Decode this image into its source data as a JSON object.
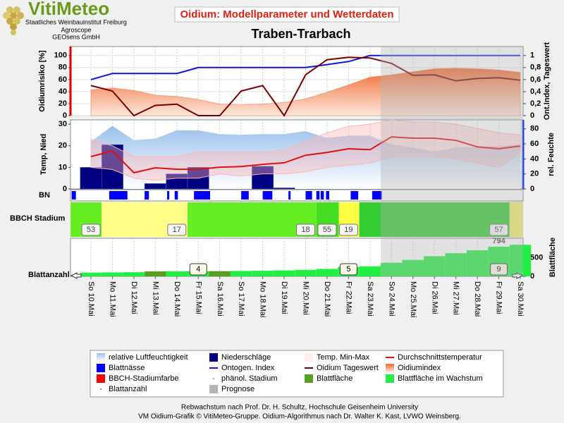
{
  "header": {
    "logo": "VitiMeteo",
    "org1": "Staatliches Weinbauinstitut Freiburg",
    "org2": "Agroscope",
    "org3": "GEOsens GmbH",
    "title": "Oidium: Modellparameter und Wetterdaten",
    "subtitle": "Traben-Trarbach"
  },
  "prognose": {
    "name": "Prognose",
    "from": "So 24.Mai",
    "color": "#b4b4b4"
  },
  "chart_data": [
    {
      "type": "risk",
      "ylabel": "Oidiumrisiko [%]",
      "y2label": "Ont.Index, Tageswert",
      "categories": [
        "So 10.Mai",
        "Mo 11.Mai",
        "Di 12.Mai",
        "Mi 13.Mai",
        "Do 14.Mai",
        "Fr 15.Mai",
        "Sa 16.Mai",
        "So 17.Mai",
        "Mo 18.Mai",
        "Di 19.Mai",
        "Mi 20.Mai",
        "Do 21.Mai",
        "Fr 22.Mai",
        "Sa 23.Mai",
        "So 24.Mai",
        "Mo 25.Mai",
        "Di 26.Mai",
        "Mi 27.Mai",
        "Do 28.Mai",
        "Fr 29.Mai",
        "Sa 30.Mai"
      ],
      "ylim": [
        0,
        115
      ],
      "yticks": [
        0,
        20,
        40,
        60,
        80,
        100
      ],
      "y2lim": [
        0,
        1.15
      ],
      "y2ticks": [
        0,
        {
          "value": 0.2,
          "label": "0,2"
        },
        {
          "value": 0.4,
          "label": "0,4"
        },
        {
          "value": 0.6,
          "label": "0,6"
        },
        {
          "value": 0.8,
          "label": "0,8"
        },
        1
      ],
      "grid": true,
      "series": [
        {
          "name": "Oidiumindex",
          "kind": "area",
          "color": "#f07030",
          "values": [
            43,
            46,
            42,
            34,
            32,
            27,
            19,
            18,
            19,
            22,
            28,
            39,
            51,
            64,
            68,
            73,
            78,
            79,
            78,
            76,
            72
          ]
        },
        {
          "name": "Ontogen. Index",
          "kind": "line",
          "axis": "y2",
          "color": "#1414dc",
          "values": [
            0.6,
            0.7,
            0.7,
            0.7,
            0.7,
            0.8,
            0.8,
            0.8,
            0.8,
            0.8,
            0.8,
            0.85,
            0.9,
            1,
            1,
            1,
            1,
            1,
            1,
            1,
            1
          ]
        },
        {
          "name": "Oidium Tageswert",
          "kind": "line",
          "axis": "y2",
          "color": "#7a0000",
          "values": [
            0.5,
            0.41,
            0,
            0.17,
            0.19,
            0,
            0,
            0.41,
            0.5,
            0,
            0.68,
            0.93,
            0.97,
            0.96,
            0.87,
            0.67,
            0.68,
            0.58,
            0.62,
            0.63,
            0.59
          ]
        }
      ]
    },
    {
      "type": "weather",
      "ylabel": "Temp, Nied",
      "y2label": "rel. Feuchte",
      "ylim": [
        0,
        32
      ],
      "yticks": [
        0,
        10,
        20,
        30
      ],
      "y2lim": [
        0,
        92
      ],
      "y2ticks": [
        0,
        20,
        40,
        60,
        80
      ],
      "series": [
        {
          "name": "relative Luftfeuchtigkeit",
          "kind": "area",
          "axis": "y2",
          "color": "#9cc0ec",
          "values": [
            63,
            84,
            65,
            67,
            78,
            78,
            73,
            72,
            73,
            73,
            77,
            68,
            71,
            71,
            59,
            55,
            50,
            55,
            56,
            57,
            59
          ]
        },
        {
          "name": "Niederschläge",
          "kind": "bar",
          "color": "#000080",
          "values": [
            10,
            20.5,
            0,
            2.5,
            7,
            10,
            0,
            0,
            10.5,
            0.5,
            0,
            0,
            0,
            0,
            0,
            0,
            0,
            0,
            0,
            0,
            0
          ]
        },
        {
          "name": "Temp. Min-Max",
          "kind": "band",
          "color": "#ffb4b4",
          "low": [
            10,
            9,
            5,
            4,
            5,
            5,
            7,
            6,
            7,
            7,
            8,
            10,
            11,
            12,
            15,
            15,
            15,
            14,
            12,
            10,
            17
          ],
          "high": [
            23,
            20,
            15,
            15,
            15,
            17,
            17,
            17,
            17,
            18,
            22,
            26,
            29,
            30,
            32,
            31,
            31,
            30,
            28,
            26,
            25
          ]
        },
        {
          "name": "Durchschnittstemperatur",
          "kind": "line",
          "color": "#e01010",
          "values": [
            15,
            17.6,
            7.5,
            9.8,
            9.1,
            9.1,
            10.1,
            10.4,
            11.4,
            12.1,
            15.6,
            16.9,
            18.6,
            18.2,
            24.1,
            23.5,
            23.5,
            22.5,
            19.5,
            18.6,
            19.9
          ]
        }
      ]
    },
    {
      "type": "intervals",
      "ylabel": "BN",
      "series": [
        {
          "name": "Blattnässe",
          "kind": "square",
          "color": "#0000ff",
          "intervals": [
            {
              "from": -0.9,
              "to": -0.7
            },
            {
              "from": 0.85,
              "to": 1.7
            },
            {
              "from": 2.5,
              "to": 2.7
            },
            {
              "from": 3.55,
              "to": 3.65
            },
            {
              "from": 3.9,
              "to": 4.05
            },
            {
              "from": 4.8,
              "to": 5.55
            },
            {
              "from": 7.0,
              "to": 7.35
            },
            {
              "from": 8.0,
              "to": 8.45
            },
            {
              "from": 9.2,
              "to": 9.3
            },
            {
              "from": 10.0,
              "to": 10.3
            },
            {
              "from": 10.5,
              "to": 10.65
            },
            {
              "from": 10.7,
              "to": 10.85
            },
            {
              "from": 10.95,
              "to": 11.1
            },
            {
              "from": 12.1,
              "to": 12.45
            },
            {
              "from": 13.1,
              "to": 13.55
            }
          ]
        }
      ]
    },
    {
      "type": "stages",
      "ylabel": "BBCH Stadium",
      "segments_name": "BBCH-Stadiumfarbe",
      "segments_color": "#ff0000",
      "segments": [
        {
          "from": -0.95,
          "to": 0.5,
          "color": "#66ee22"
        },
        {
          "from": 0.5,
          "to": 4.5,
          "color": "#ffff88"
        },
        {
          "from": 4.5,
          "to": 10.5,
          "color": "#66ee22"
        },
        {
          "from": 10.5,
          "to": 11.55,
          "color": "#44dd22"
        },
        {
          "from": 11.55,
          "to": 12.5,
          "color": "#ffff44"
        },
        {
          "from": 12.5,
          "to": 19.5,
          "color": "#33cc33"
        },
        {
          "from": 19.5,
          "to": 20.13,
          "color": "#eeee66"
        }
      ],
      "labels_name": "phänol. Stadium",
      "labels_color": "#888888",
      "labels": [
        {
          "day": "So 10.Mai",
          "stage": 53
        },
        {
          "day": "Do 14.Mai",
          "stage": 17
        },
        {
          "day": "Mi 20.Mai",
          "stage": 18
        },
        {
          "day": "Do 21.Mai",
          "stage": 55
        },
        {
          "day": "Fr 22.Mai",
          "stage": 19
        },
        {
          "day": "Fr 29.Mai",
          "stage": 57
        }
      ]
    },
    {
      "type": "leaves",
      "ylabel": "Blattanzahl",
      "y2label": "Blattfläche",
      "y2lim": [
        0,
        1020
      ],
      "y2ticks": [
        0,
        500
      ],
      "series": [
        {
          "name": "Blattfläche",
          "kind": "square",
          "color": "#55a020",
          "values": [
            null,
            null,
            null,
            135,
            null,
            null,
            140,
            null,
            null,
            null,
            null,
            null,
            null,
            null,
            null,
            null,
            null,
            null,
            null,
            null,
            null
          ]
        },
        {
          "name": "Blattfläche im Wachstum",
          "kind": "square",
          "color": "#22ee44",
          "values": [
            100,
            105,
            110,
            null,
            135,
            135,
            null,
            145,
            150,
            160,
            175,
            200,
            250,
            270,
            365,
            440,
            540,
            620,
            700,
            794,
            846
          ],
          "value_labels": [
            null,
            null,
            null,
            null,
            null,
            null,
            null,
            null,
            null,
            null,
            null,
            null,
            null,
            null,
            null,
            null,
            null,
            null,
            null,
            "794",
            null
          ]
        }
      ],
      "counts_name": "Blattanzahl",
      "counts": [
        {
          "day": "Fr 15.Mai",
          "count": 4
        },
        {
          "day": "Fr 22.Mai",
          "count": 5
        },
        {
          "day": "Fr 29.Mai",
          "count": 9
        }
      ]
    }
  ],
  "footer": {
    "line1": "Rebwachstum nach Prof. Dr. H. Schultz, Hochschule Geisenheim University",
    "line2": "VM Oidium-Grafik © VitiMeteo-Gruppe. Oidium-Algorithmus nach Dr. Walter K. Kast, LVWO Weinsberg."
  }
}
